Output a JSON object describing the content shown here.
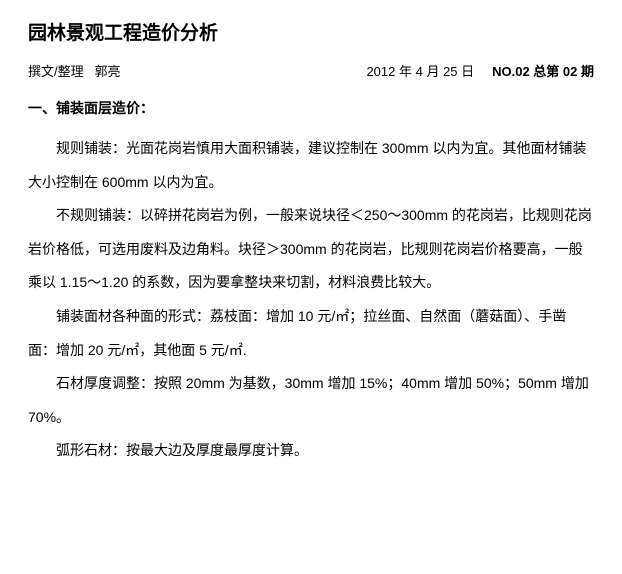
{
  "title": "园林景观工程造价分析",
  "meta": {
    "author_label": "撰文/整理",
    "author_name": "郭亮",
    "date": "2012 年 4 月 25 日",
    "issue": "NO.02  总第 02 期"
  },
  "section_heading": "一、铺装面层造价：",
  "paragraphs": [
    "规则铺装：光面花岗岩慎用大面积铺装，建议控制在 300mm 以内为宜。其他面材铺装大小控制在 600mm 以内为宜。",
    "不规则铺装：以碎拼花岗岩为例，一般来说块径＜250～300mm 的花岗岩，比规则花岗岩价格低，可选用废料及边角料。块径＞300mm 的花岗岩，比规则花岗岩价格要高，一般乘以 1.15～1.20 的系数，因为要拿整块来切割，材料浪费比较大。",
    "铺装面材各种面的形式：荔枝面：增加 10 元/㎡；拉丝面、自然面（蘑菇面）、手凿面：增加 20 元/㎡，其他面 5 元/㎡.",
    "石材厚度调整：按照 20mm 为基数，30mm 增加 15%；40mm 增加 50%；50mm 增加 70%。",
    "弧形石材：按最大边及厚度最厚度计算。"
  ],
  "colors": {
    "background": "#ffffff",
    "text": "#000000"
  },
  "typography": {
    "title_fontsize": 19,
    "title_weight": "bold",
    "meta_fontsize": 13,
    "heading_fontsize": 14,
    "heading_weight": "bold",
    "body_fontsize": 14,
    "body_line_height": 2.4,
    "text_indent_em": 2
  }
}
